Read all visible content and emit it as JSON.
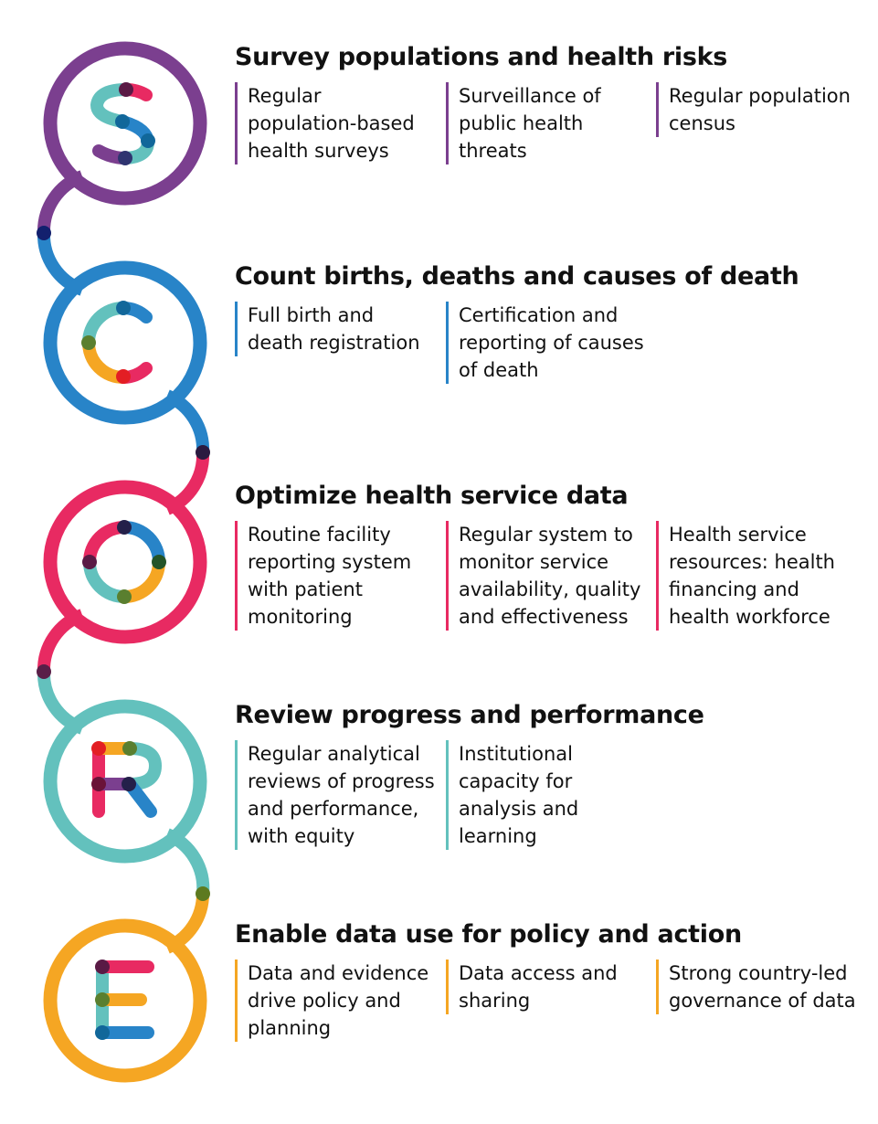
{
  "colors": {
    "purple": "#7b3f8f",
    "blue": "#2884c8",
    "pink": "#e82a62",
    "teal": "#63c1bd",
    "orange": "#f5a623"
  },
  "logo_letters": [
    "S",
    "C",
    "O",
    "R",
    "E"
  ],
  "sections": [
    {
      "title": "Survey populations and health risks",
      "color": "#7b3f8f",
      "items": [
        "Regular population-based health surveys",
        "Surveillance of public health threats",
        "Regular population census"
      ]
    },
    {
      "title": "Count births, deaths and causes of death",
      "color": "#2884c8",
      "items": [
        "Full birth and death registration",
        "Certification and reporting of causes of death"
      ]
    },
    {
      "title": "Optimize health service data",
      "color": "#e82a62",
      "items": [
        "Routine facility reporting system with patient monitoring",
        "Regular system to monitor service availability, quality and effectiveness",
        "Health service resources: health financing and health workforce"
      ]
    },
    {
      "title": "Review progress and performance",
      "color": "#63c1bd",
      "items": [
        "Regular analytical reviews of progress and performance, with equity",
        "Institutional capacity for analysis and learning"
      ]
    },
    {
      "title": "Enable data use for policy and action",
      "color": "#f5a623",
      "items": [
        "Data and evidence drive policy and planning",
        "Data access and sharing",
        "Strong country-led governance of data"
      ]
    }
  ]
}
